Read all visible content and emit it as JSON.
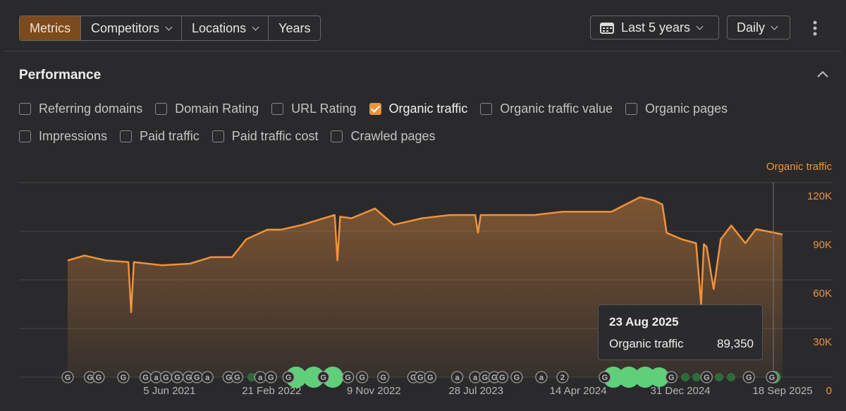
{
  "toolbar": {
    "tabs": [
      "Metrics",
      "Competitors",
      "Locations",
      "Years"
    ],
    "range": "Last 5 years",
    "interval": "Daily"
  },
  "section": {
    "title": "Performance",
    "metrics": [
      [
        {
          "label": "Referring domains",
          "checked": false
        },
        {
          "label": "Domain Rating",
          "checked": false
        },
        {
          "label": "URL Rating",
          "checked": false
        },
        {
          "label": "Organic traffic",
          "checked": true
        },
        {
          "label": "Organic traffic value",
          "checked": false
        },
        {
          "label": "Organic pages",
          "checked": false
        }
      ],
      [
        {
          "label": "Impressions",
          "checked": false
        },
        {
          "label": "Paid traffic",
          "checked": false
        },
        {
          "label": "Paid traffic cost",
          "checked": false
        },
        {
          "label": "Crawled pages",
          "checked": false
        }
      ]
    ]
  },
  "chart_data": {
    "type": "line",
    "x": [
      "2020-09-18",
      "2020-10-31",
      "2020-12-24",
      "2021-02-20",
      "2021-02-27",
      "2021-03-06",
      "2021-05-17",
      "2021-07-27",
      "2021-09-19",
      "2021-11-12",
      "2021-12-18",
      "2022-02-10",
      "2022-03-18",
      "2022-05-11",
      "2022-07-04",
      "2022-08-01",
      "2022-08-08",
      "2022-08-15",
      "2022-09-13",
      "2022-11-12",
      "2022-12-30",
      "2023-03-12",
      "2023-05-23",
      "2023-07-26",
      "2023-08-02",
      "2023-08-09",
      "2023-10-13",
      "2023-12-24",
      "2024-03-05",
      "2024-05-15",
      "2024-07-08",
      "2024-08-13",
      "2024-09-19",
      "2024-10-25",
      "2024-11-15",
      "2024-11-26",
      "2025-01-04",
      "2025-02-09",
      "2025-02-22",
      "2025-03-01",
      "2025-03-08",
      "2025-03-26",
      "2025-04-13",
      "2025-05-10",
      "2025-06-15",
      "2025-07-12",
      "2025-08-23",
      "2025-09-18"
    ],
    "series": [
      {
        "name": "Organic traffic",
        "color": "#f0923a",
        "values": [
          72000,
          75000,
          72000,
          71000,
          40000,
          71000,
          69000,
          70000,
          74000,
          74000,
          85000,
          91000,
          91000,
          94000,
          98000,
          100000,
          72000,
          99000,
          98000,
          104000,
          94000,
          98000,
          100000,
          100000,
          89000,
          100000,
          100000,
          100000,
          102000,
          102000,
          102000,
          106500,
          111000,
          109000,
          106500,
          89000,
          85000,
          82600,
          44800,
          82000,
          80400,
          54300,
          85000,
          93500,
          82600,
          91300,
          89350,
          88000
        ]
      }
    ],
    "xlim": [
      "2020-09-18",
      "2025-09-18"
    ],
    "xticks": [
      {
        "value": "2021-06-05",
        "label": "5 Jun 2021"
      },
      {
        "value": "2022-02-21",
        "label": "21 Feb 2022"
      },
      {
        "value": "2022-11-09",
        "label": "9 Nov 2022"
      },
      {
        "value": "2023-07-28",
        "label": "28 Jul 2023"
      },
      {
        "value": "2024-04-14",
        "label": "14 Apr 2024"
      },
      {
        "value": "2024-12-31",
        "label": "31 Dec 2024"
      },
      {
        "value": "2025-09-18",
        "label": "18 Sep 2025"
      }
    ],
    "ylim": [
      0,
      120000
    ],
    "yticks": [
      0,
      {
        "value": 30000,
        "label": "30K"
      },
      {
        "value": 60000,
        "label": "60K"
      },
      {
        "value": 90000,
        "label": "90K"
      },
      {
        "value": 120000,
        "label": "120K"
      }
    ],
    "grid": true,
    "annotations": [
      {
        "date": "2020-09-18",
        "label": "G"
      },
      {
        "date": "2020-11-14",
        "label": "G"
      },
      {
        "date": "2020-12-06",
        "label": "G"
      },
      {
        "date": "2021-02-07",
        "label": "G"
      },
      {
        "date": "2021-04-05",
        "label": "G"
      },
      {
        "date": "2021-05-02",
        "label": "a"
      },
      {
        "date": "2021-05-27",
        "label": "G"
      },
      {
        "date": "2021-06-25",
        "label": "G"
      },
      {
        "date": "2021-07-24",
        "label": "G"
      },
      {
        "date": "2021-08-14",
        "label": "G"
      },
      {
        "date": "2021-09-10",
        "label": "a"
      },
      {
        "date": "2021-11-03",
        "label": "G"
      },
      {
        "date": "2021-11-25",
        "label": "G"
      },
      {
        "date": "2022-01-23",
        "label": "a"
      },
      {
        "date": "2022-02-19",
        "label": "G"
      },
      {
        "date": "2022-04-05",
        "label": "G"
      },
      {
        "date": "2022-07-03",
        "label": "G"
      },
      {
        "date": "2022-09-04",
        "label": "G"
      },
      {
        "date": "2022-10-10",
        "label": "G"
      },
      {
        "date": "2022-12-03",
        "label": "G"
      },
      {
        "date": "2023-02-18",
        "label": "G"
      },
      {
        "date": "2023-03-08",
        "label": "G"
      },
      {
        "date": "2023-04-02",
        "label": "G"
      },
      {
        "date": "2023-06-10",
        "label": "a"
      },
      {
        "date": "2023-07-26",
        "label": "a"
      },
      {
        "date": "2023-08-20",
        "label": "G"
      },
      {
        "date": "2023-09-13",
        "label": "G"
      },
      {
        "date": "2023-10-03",
        "label": "G"
      },
      {
        "date": "2023-11-09",
        "label": "G"
      },
      {
        "date": "2024-01-11",
        "label": "a"
      },
      {
        "date": "2024-03-05",
        "label": "2"
      },
      {
        "date": "2024-06-21",
        "label": "G"
      },
      {
        "date": "2024-12-08",
        "label": "G"
      },
      {
        "date": "2025-03-08",
        "label": "G"
      },
      {
        "date": "2025-06-24",
        "label": "G"
      },
      {
        "date": "2025-08-22",
        "label": "G"
      }
    ],
    "tooltip": {
      "title": "23 Aug 2025",
      "value": "89,350"
    }
  }
}
